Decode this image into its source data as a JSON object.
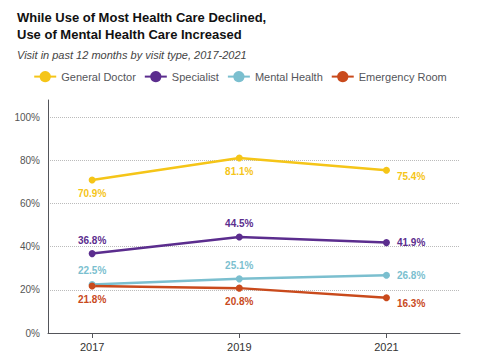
{
  "chart_data": {
    "type": "line",
    "title": "While Use of Most Health Care Declined,\nUse of Mental Health Care Increased",
    "subtitle": "Visit in past 12 months by visit type, 2017-2021",
    "x": [
      2017,
      2019,
      2021
    ],
    "xlim": [
      2016.4,
      2022.0
    ],
    "xticks": [
      2017,
      2019,
      2021
    ],
    "ylim": [
      0,
      108
    ],
    "yticks": [
      {
        "value": 0,
        "label": "0%"
      },
      {
        "value": 20,
        "label": "20%"
      },
      {
        "value": 40,
        "label": "40%"
      },
      {
        "value": 60,
        "label": "60%"
      },
      {
        "value": 80,
        "label": "80%"
      },
      {
        "value": 100,
        "label": "100%"
      }
    ],
    "grid": true,
    "legend": "top",
    "marker": "circle",
    "data_labels": true,
    "series": [
      {
        "name": "General Doctor",
        "color": "#F5C518",
        "values": [
          70.9,
          81.1,
          75.4
        ],
        "value_labels": [
          "70.9%",
          "81.1%",
          "75.4%"
        ]
      },
      {
        "name": "Specialist",
        "color": "#5B2D8E",
        "values": [
          36.8,
          44.5,
          41.9
        ],
        "value_labels": [
          "36.8%",
          "44.5%",
          "41.9%"
        ]
      },
      {
        "name": "Mental Health",
        "color": "#7BBFCF",
        "values": [
          22.5,
          25.1,
          26.8
        ],
        "value_labels": [
          "22.5%",
          "25.1%",
          "26.8%"
        ]
      },
      {
        "name": "Emergency Room",
        "color": "#C94A1C",
        "values": [
          21.8,
          20.8,
          16.3
        ],
        "value_labels": [
          "21.8%",
          "20.8%",
          "16.3%"
        ]
      }
    ]
  }
}
